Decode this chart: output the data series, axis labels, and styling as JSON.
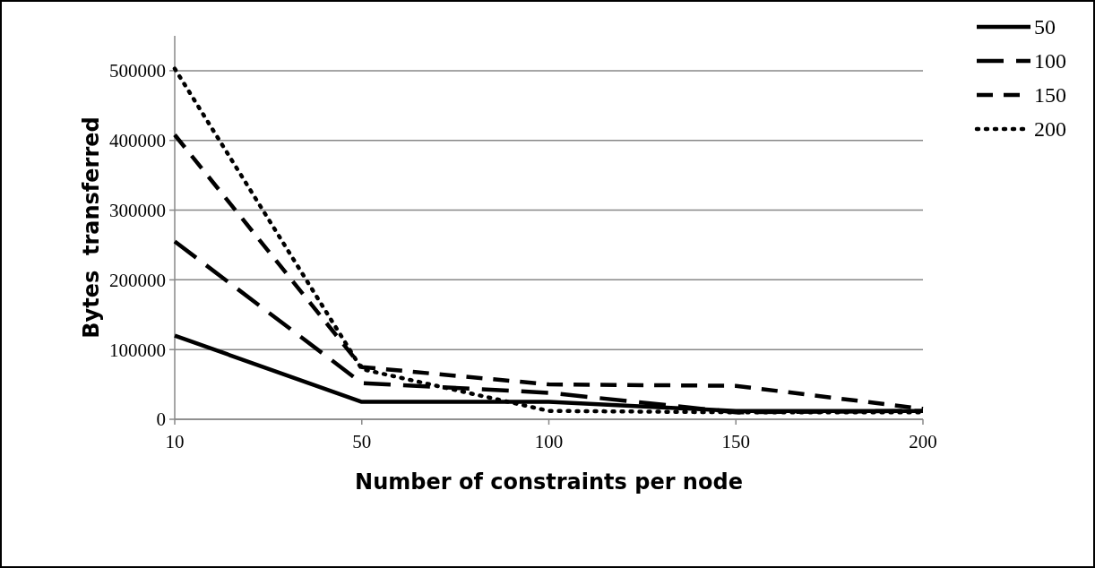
{
  "chart_data": {
    "type": "line",
    "xlabel": "Number of constraints per node",
    "ylabel": "Bytes  transferred",
    "categories": [
      "10",
      "50",
      "100",
      "150",
      "200"
    ],
    "series": [
      {
        "name": "50",
        "color": "#000000",
        "line_style": "solid",
        "values": [
          120000,
          25000,
          25000,
          12000,
          12000
        ]
      },
      {
        "name": "100",
        "color": "#000000",
        "line_style": "longdash",
        "values": [
          255000,
          52000,
          38000,
          10000,
          12000
        ]
      },
      {
        "name": "150",
        "color": "#000000",
        "line_style": "dashed",
        "values": [
          408000,
          75000,
          50000,
          48000,
          15000
        ]
      },
      {
        "name": "200",
        "color": "#000000",
        "line_style": "dotted",
        "values": [
          503000,
          72000,
          12000,
          10000,
          10000
        ]
      }
    ],
    "ylim": [
      0,
      550000
    ],
    "yticks": [
      0,
      100000,
      200000,
      300000,
      400000,
      500000
    ],
    "grid": "y",
    "legend": "top right"
  }
}
